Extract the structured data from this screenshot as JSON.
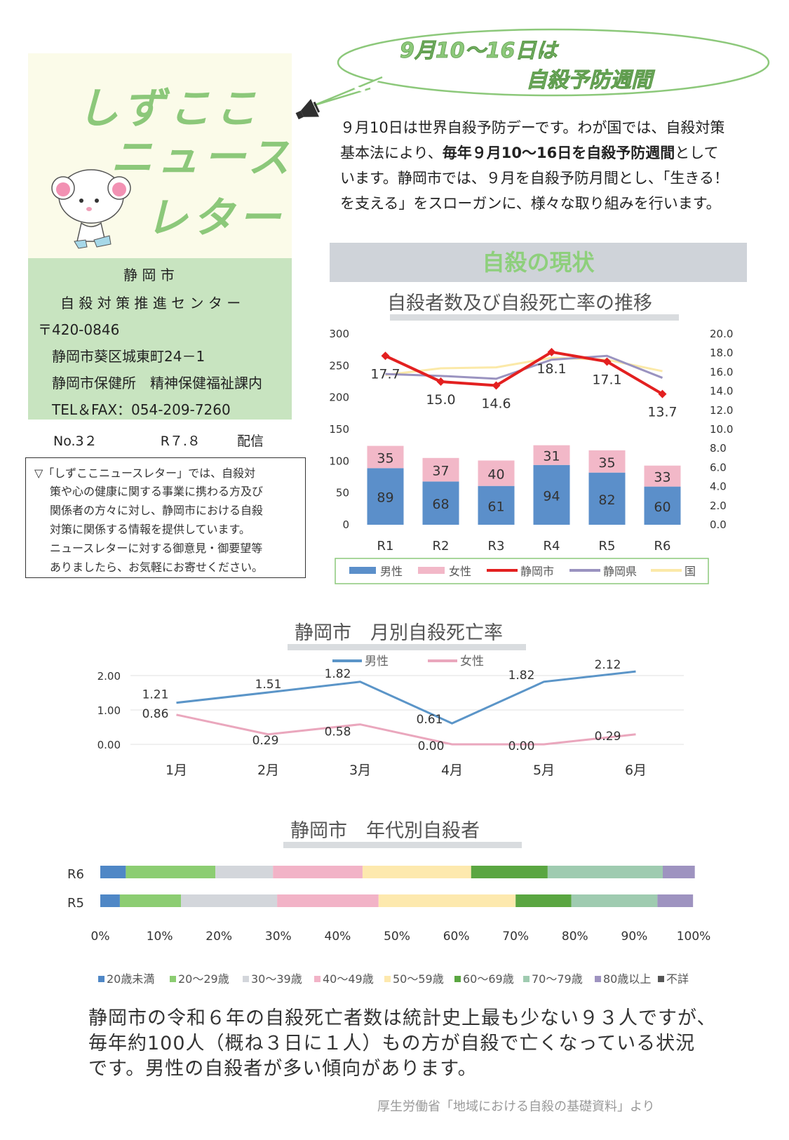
{
  "colors": {
    "green": "#8cc87a",
    "male": "#5b8fca",
    "female": "#f2b8c8",
    "shizuoka": "#e32020",
    "pref": "#9a93c0",
    "nation": "#fbe9a8"
  },
  "bubble": {
    "line1": "9月10～16日は",
    "line2": "自殺予防週間"
  },
  "title": {
    "line1": "しずここ",
    "line2": "ニュース",
    "line3": "レター"
  },
  "info": {
    "city": "静 岡 市",
    "center": "自 殺 対 策 推 進 セ ン タ ー",
    "postal": "〒420-0846",
    "address": "静岡市葵区城東町24－1",
    "dept": "静岡市保健所　精神保健福祉課内",
    "tel": "TEL＆FAX：054-209-7260"
  },
  "issue": {
    "no": "No.3２",
    "date": "R７.８",
    "delivery": "配信"
  },
  "intro": {
    "lines": [
      "▽「しずここニュースレター」では、自殺対",
      "策や心の健康に関する事業に携わる方及び",
      "関係者の方々に対し、静岡市における自殺",
      "対策に関係する情報を提供しています。",
      "ニュースレターに対する御意見・御要望等",
      "ありましたら、お気軽にお寄せください。"
    ]
  },
  "body": {
    "line1": "９月10日は世界自殺予防デーです。わが国では、自殺対策",
    "line2_a": "基本法により、",
    "line2_b": "毎年９月10～16日を自殺予防週間",
    "line2_c": "として",
    "line3": "います。静岡市では、９月を自殺予防月間とし、「生きる！",
    "line4": "を支える」をスローガンに、様々な取り組みを行います。"
  },
  "section_title": "自殺の現状",
  "chart_data": [
    {
      "type": "bar",
      "title": "自殺者数及び自殺死亡率の推移",
      "categories": [
        "R1",
        "R2",
        "R3",
        "R4",
        "R5",
        "R6"
      ],
      "series": [
        {
          "name": "男性",
          "kind": "stacked-bar",
          "values": [
            89,
            68,
            61,
            94,
            82,
            60
          ]
        },
        {
          "name": "女性",
          "kind": "stacked-bar",
          "values": [
            35,
            37,
            40,
            31,
            35,
            33
          ]
        },
        {
          "name": "静岡市",
          "kind": "line",
          "axis": "right",
          "values": [
            17.7,
            15.0,
            14.6,
            18.1,
            17.1,
            13.7
          ]
        },
        {
          "name": "静岡県",
          "kind": "line",
          "axis": "right",
          "values": [
            15.8,
            15.6,
            15.3,
            17.3,
            17.7,
            15.4
          ]
        },
        {
          "name": "国",
          "kind": "line",
          "axis": "right",
          "values": [
            15.7,
            16.4,
            16.5,
            17.5,
            17.3,
            16.1
          ]
        }
      ],
      "left_ticks": [
        "0",
        "50",
        "100",
        "150",
        "200",
        "250",
        "300"
      ],
      "right_ticks": [
        "0.0",
        "2.0",
        "4.0",
        "6.0",
        "8.0",
        "10.0",
        "12.0",
        "14.0",
        "16.0",
        "18.0",
        "20.0"
      ],
      "ylim": [
        0,
        300
      ],
      "ylim_right": [
        0,
        20
      ],
      "legend": "bottom"
    },
    {
      "type": "line",
      "title": "静岡市　月別自殺死亡率",
      "categories": [
        "1月",
        "2月",
        "3月",
        "4月",
        "5月",
        "6月"
      ],
      "series": [
        {
          "name": "男性",
          "values": [
            1.21,
            1.51,
            1.82,
            0.61,
            1.82,
            2.12
          ]
        },
        {
          "name": "女性",
          "values": [
            0.86,
            0.29,
            0.58,
            0.0,
            0.0,
            0.29
          ]
        }
      ],
      "y_ticks": [
        "0.00",
        "1.00",
        "2.00"
      ],
      "ylim": [
        0,
        2.2
      ],
      "legend": "top"
    },
    {
      "type": "bar",
      "title": "静岡市　年代別自殺者",
      "categories": [
        "R6",
        "R5"
      ],
      "series": [
        {
          "name": "20歳未満",
          "values": [
            4.3,
            3.3
          ]
        },
        {
          "name": "20～29歳",
          "values": [
            15.1,
            10.3
          ]
        },
        {
          "name": "30～39歳",
          "values": [
            9.7,
            16.2
          ]
        },
        {
          "name": "40～49歳",
          "values": [
            15.1,
            17.1
          ]
        },
        {
          "name": "50～59歳",
          "values": [
            18.3,
            23.1
          ]
        },
        {
          "name": "60～69歳",
          "values": [
            12.9,
            9.4
          ]
        },
        {
          "name": "70～79歳",
          "values": [
            19.4,
            14.5
          ]
        },
        {
          "name": "80歳以上",
          "values": [
            5.4,
            6.0
          ]
        },
        {
          "name": "不詳",
          "values": [
            0,
            0
          ]
        }
      ],
      "x_ticks": [
        "0%",
        "10%",
        "20%",
        "30%",
        "40%",
        "50%",
        "60%",
        "70%",
        "80%",
        "90%",
        "100%"
      ],
      "orientation": "horizontal-stacked-100",
      "legend": "bottom"
    }
  ],
  "summary": {
    "line1": "静岡市の令和６年の自殺死亡者数は統計史上最も少ない９３人ですが、",
    "line2": "毎年約100人（概ね３日に１人）もの方が自殺で亡くなっている状況",
    "line3": "です。男性の自殺者が多い傾向があります。"
  },
  "source": "厚生労働省「地域における自殺の基礎資料」より"
}
